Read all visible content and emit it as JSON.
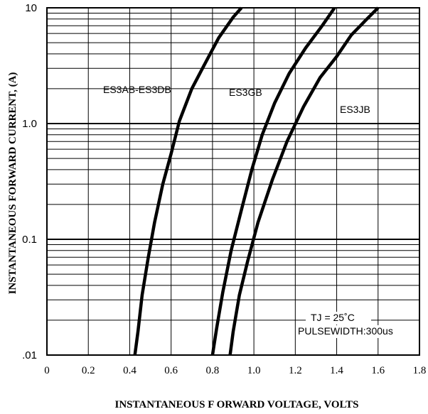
{
  "chart_data": {
    "type": "line",
    "xlabel": "INSTANTANEOUS F ORWARD VOLTAGE, VOLTS",
    "ylabel": "INSTANTANEOUS   FORWARD CURRENT, (A)",
    "x_ticks": [
      "0",
      "0.2",
      "0.4",
      "0.6",
      "0.8",
      "1.0",
      "1.2",
      "1.4",
      "1.6",
      "1.8"
    ],
    "y_ticks": [
      ".01",
      "0.1",
      "1.0",
      "10"
    ],
    "xlim": [
      0,
      1.8
    ],
    "ylim": [
      0.01,
      10
    ],
    "yscale": "log",
    "grid": true,
    "series": [
      {
        "name": "ES3AB-ES3DB",
        "points": [
          [
            0.425,
            0.01
          ],
          [
            0.44,
            0.016
          ],
          [
            0.46,
            0.033
          ],
          [
            0.49,
            0.07
          ],
          [
            0.52,
            0.14
          ],
          [
            0.56,
            0.3
          ],
          [
            0.6,
            0.55
          ],
          [
            0.64,
            1.05
          ],
          [
            0.7,
            2.0
          ],
          [
            0.76,
            3.2
          ],
          [
            0.83,
            5.5
          ],
          [
            0.9,
            8.3
          ],
          [
            0.94,
            10
          ]
        ]
      },
      {
        "name": "ES3GB",
        "points": [
          [
            0.8,
            0.01
          ],
          [
            0.82,
            0.017
          ],
          [
            0.85,
            0.035
          ],
          [
            0.89,
            0.08
          ],
          [
            0.94,
            0.18
          ],
          [
            0.99,
            0.4
          ],
          [
            1.04,
            0.8
          ],
          [
            1.1,
            1.5
          ],
          [
            1.17,
            2.7
          ],
          [
            1.25,
            4.5
          ],
          [
            1.33,
            7.0
          ],
          [
            1.39,
            10
          ]
        ]
      },
      {
        "name": "ES3JB",
        "points": [
          [
            0.885,
            0.01
          ],
          [
            0.9,
            0.016
          ],
          [
            0.93,
            0.033
          ],
          [
            0.97,
            0.065
          ],
          [
            1.02,
            0.14
          ],
          [
            1.09,
            0.33
          ],
          [
            1.16,
            0.7
          ],
          [
            1.24,
            1.4
          ],
          [
            1.32,
            2.5
          ],
          [
            1.4,
            3.8
          ],
          [
            1.47,
            5.8
          ],
          [
            1.54,
            7.8
          ],
          [
            1.6,
            10
          ]
        ]
      }
    ],
    "series_label_text": [
      "ES3AB-ES3DB",
      "ES3GB",
      "ES3JB"
    ],
    "annotations": [
      "TJ = 25˚C",
      "PULSEWIDTH:300us"
    ]
  }
}
